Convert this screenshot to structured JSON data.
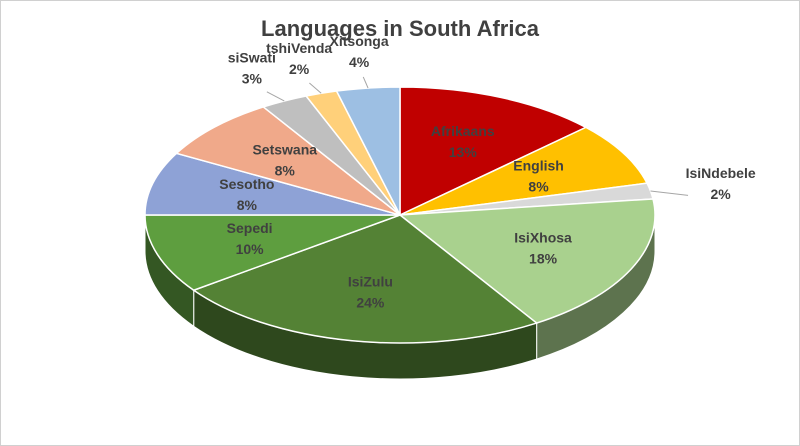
{
  "chart_data": {
    "type": "pie",
    "title": "Languages in South Africa",
    "categories": [
      "Afrikaans",
      "English",
      "IsiNdebele",
      "IsiXhosa",
      "IsiZulu",
      "Sepedi",
      "Sesotho",
      "Setswana",
      "siSwati",
      "tshiVenda",
      "Xitsonga"
    ],
    "values": [
      13,
      8,
      2,
      18,
      24,
      10,
      8,
      8,
      3,
      2,
      4
    ],
    "value_labels": [
      "13%",
      "8%",
      "2%",
      "18%",
      "24%",
      "10%",
      "8%",
      "8%",
      "3%",
      "2%",
      "4%"
    ],
    "colors": [
      "#c00000",
      "#ffc000",
      "#d9d9d9",
      "#a9d18e",
      "#548235",
      "#5e9e3f",
      "#8ea2d6",
      "#f0a98a",
      "#bfbfbf",
      "#ffd07a",
      "#9dbfe3"
    ]
  }
}
